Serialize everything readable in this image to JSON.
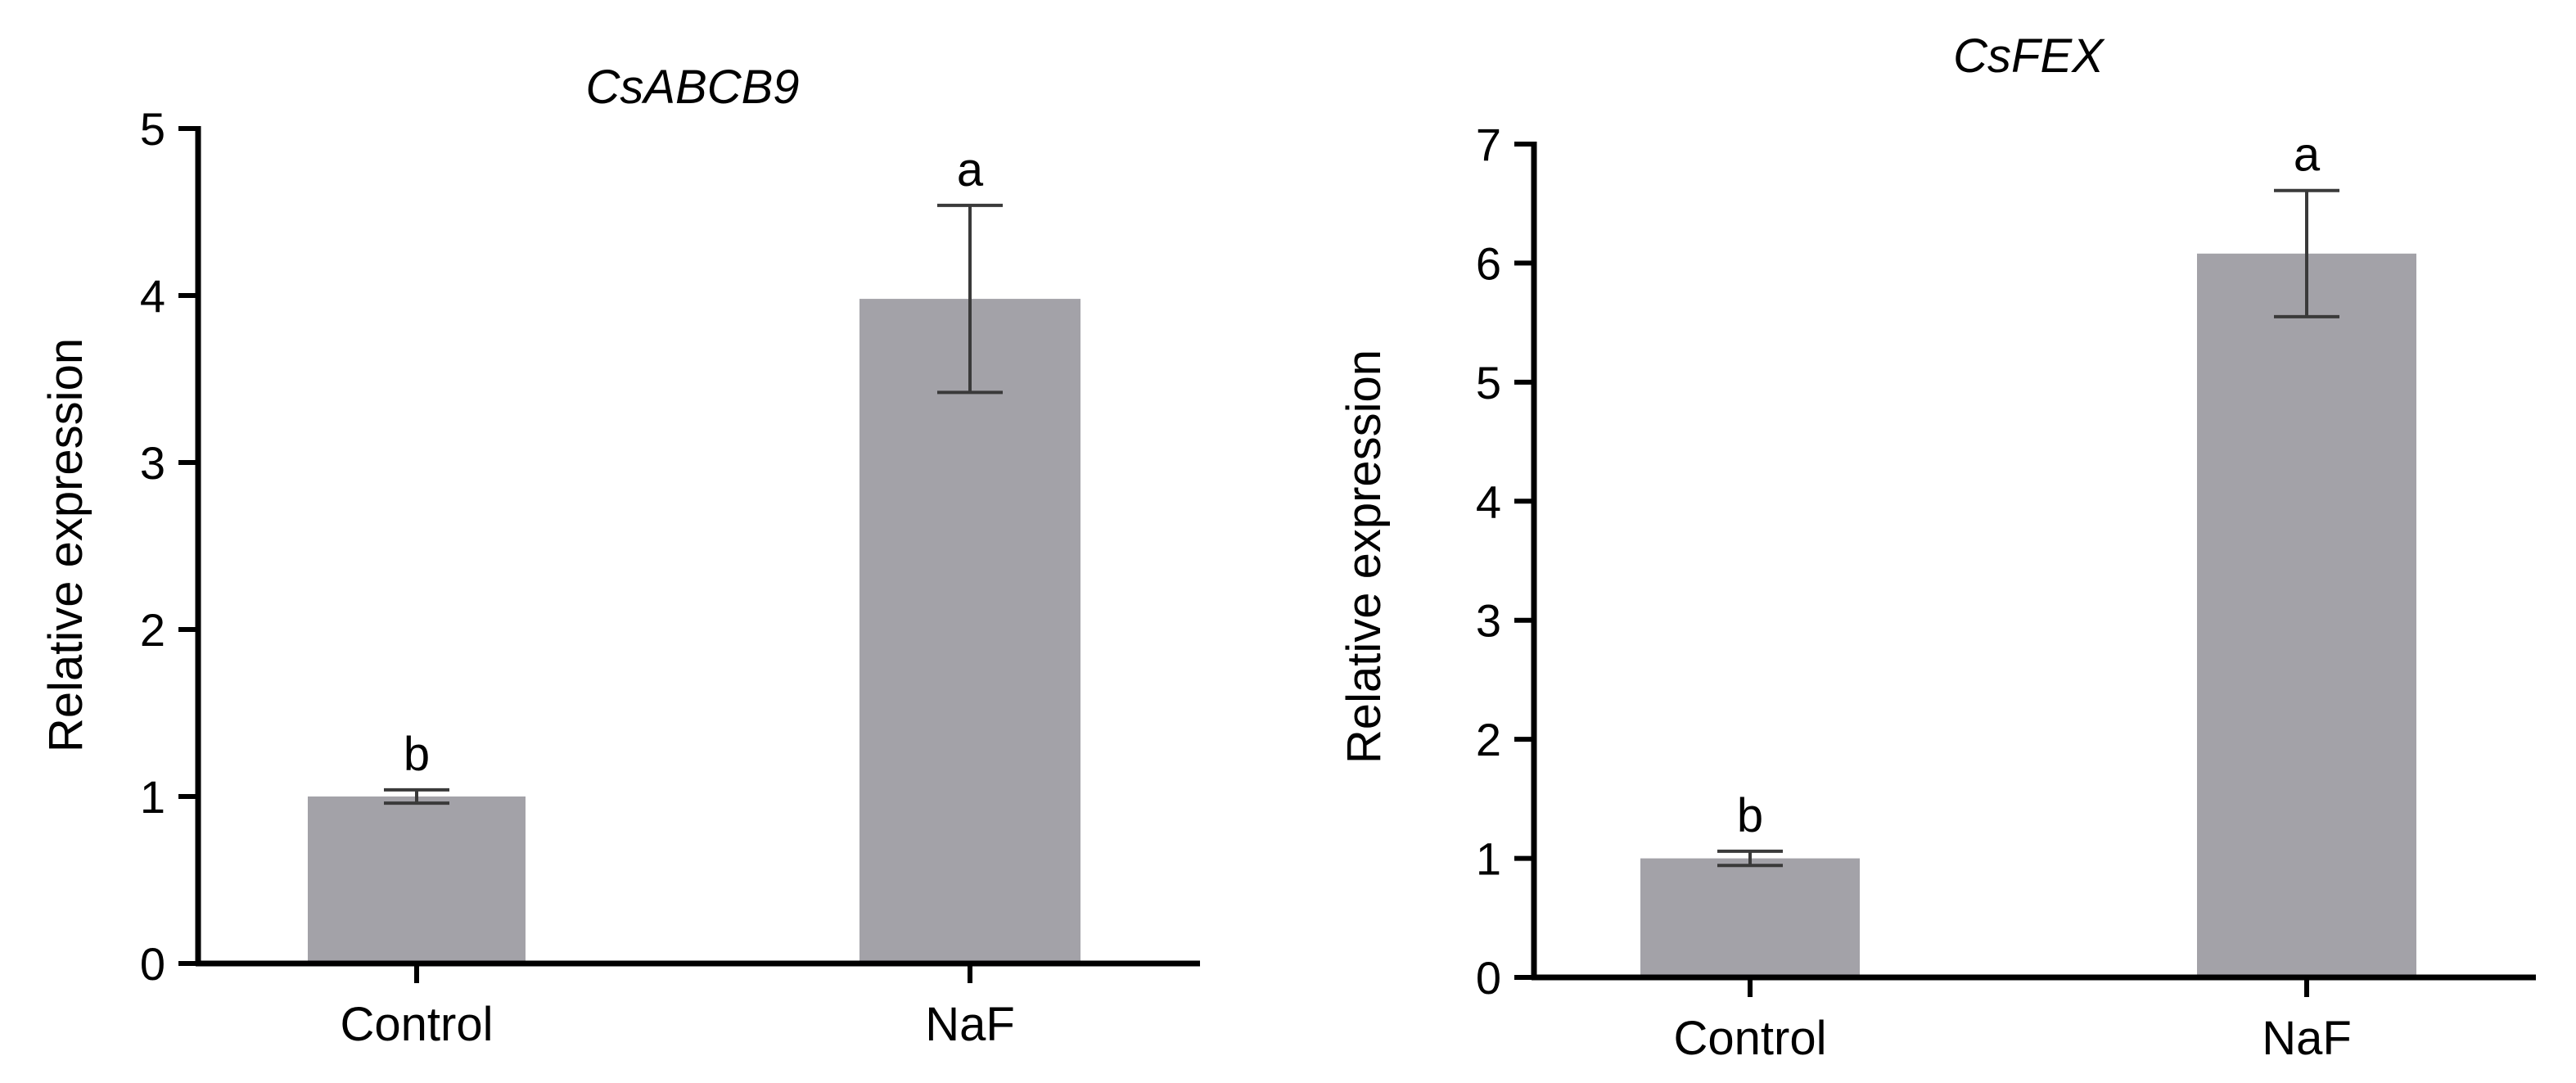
{
  "chart_data": [
    {
      "type": "bar",
      "title": "CsABCB9",
      "xlabel": "",
      "ylabel": "Relative expression",
      "categories": [
        "Control",
        "NaF"
      ],
      "values": [
        1.0,
        3.98
      ],
      "error": [
        0.04,
        0.56
      ],
      "significance": [
        "b",
        "a"
      ],
      "ylim": [
        0,
        5
      ],
      "yticks": [
        0,
        1,
        2,
        3,
        4,
        5
      ],
      "bar_color": "#a3a2a8",
      "grid": false,
      "legend": "none"
    },
    {
      "type": "bar",
      "title": "CsFEX",
      "xlabel": "",
      "ylabel": "Relative expression",
      "categories": [
        "Control",
        "NaF"
      ],
      "values": [
        1.0,
        6.08
      ],
      "error": [
        0.06,
        0.53
      ],
      "significance": [
        "b",
        "a"
      ],
      "ylim": [
        0,
        7
      ],
      "yticks": [
        0,
        1,
        2,
        3,
        4,
        5,
        6,
        7
      ],
      "bar_color": "#a3a2a8",
      "grid": false,
      "legend": "none"
    }
  ]
}
